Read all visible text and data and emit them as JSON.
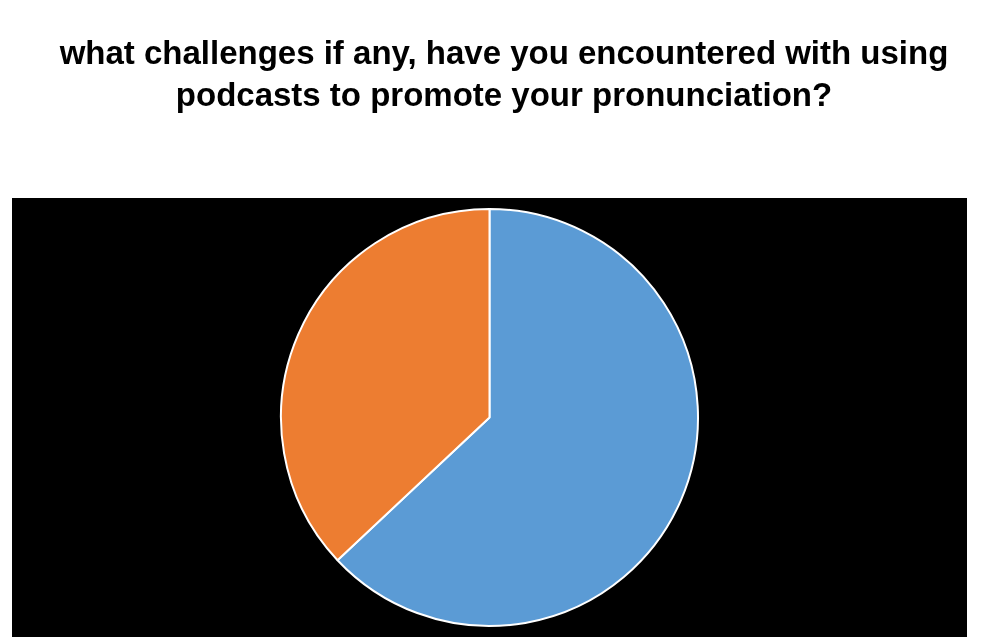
{
  "chart_data": {
    "type": "pie",
    "title": "what challenges if any, have you encountered with using podcasts to promote your pronunciation?",
    "categories": [
      null,
      null
    ],
    "values": [
      63,
      37
    ],
    "colors": [
      "#5b9bd5",
      "#ed7d31"
    ]
  }
}
